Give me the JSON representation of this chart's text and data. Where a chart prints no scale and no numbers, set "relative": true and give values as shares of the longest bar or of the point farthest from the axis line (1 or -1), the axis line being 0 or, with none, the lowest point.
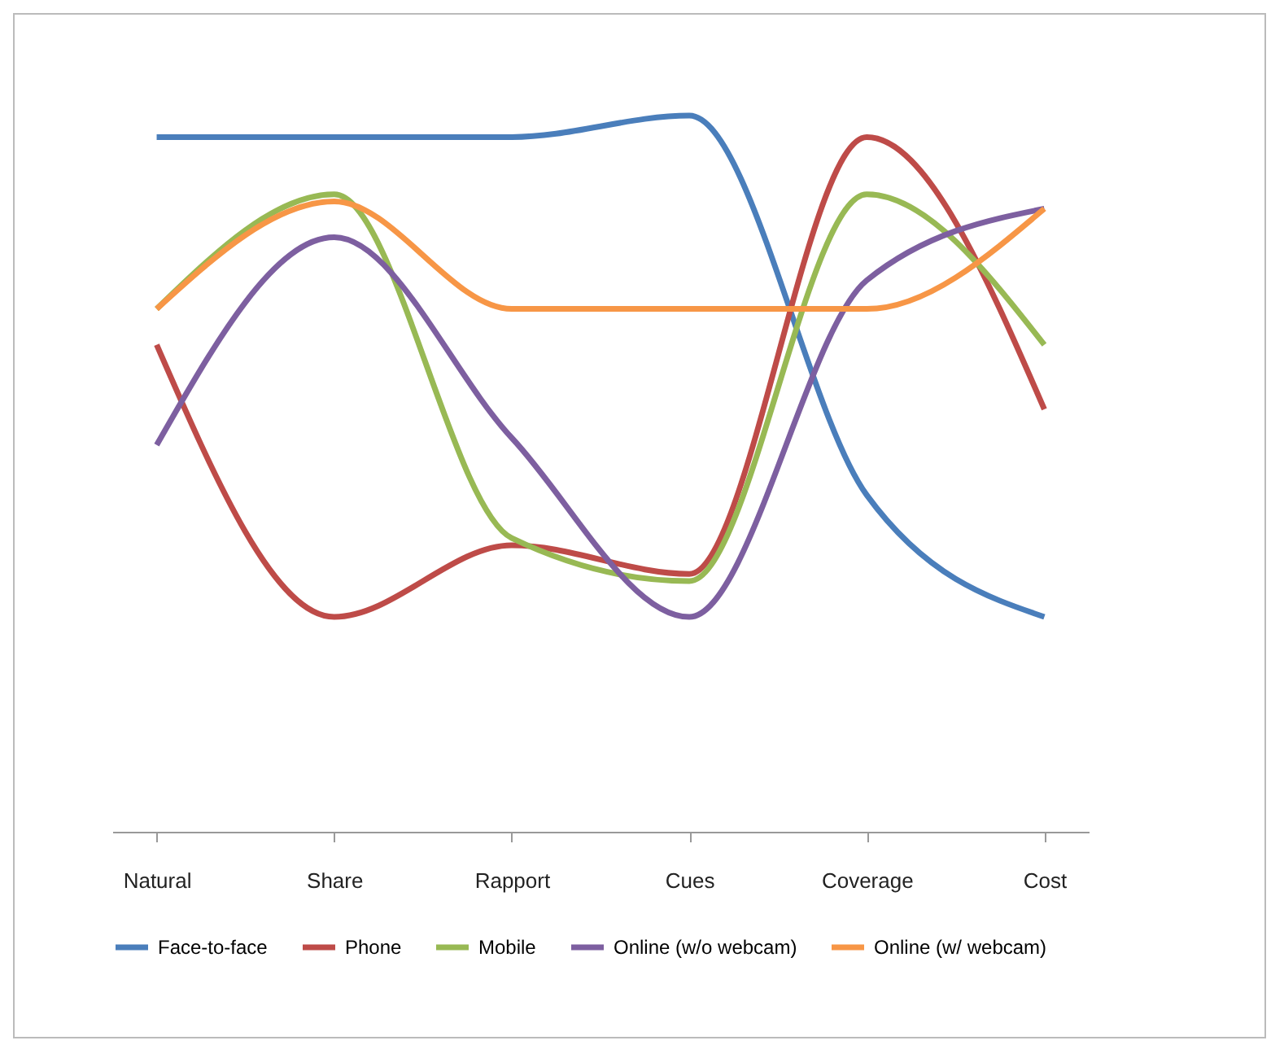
{
  "chart_data": {
    "type": "line",
    "relative": true,
    "categories": [
      "Natural",
      "Share",
      "Rapport",
      "Cues",
      "Coverage",
      "Cost"
    ],
    "series": [
      {
        "name": "Face-to-face",
        "color": "#4a7ebb",
        "values": [
          0.97,
          0.97,
          0.97,
          1,
          0.47,
          0.3
        ]
      },
      {
        "name": "Phone",
        "color": "#be4b48",
        "values": [
          0.68,
          0.3,
          0.4,
          0.36,
          0.97,
          0.59
        ]
      },
      {
        "name": "Mobile",
        "color": "#98b954",
        "values": [
          0.73,
          0.89,
          0.41,
          0.35,
          0.89,
          0.68
        ]
      },
      {
        "name": "Online (w/o webcam)",
        "color": "#7d5fa0",
        "values": [
          0.54,
          0.83,
          0.55,
          0.3,
          0.77,
          0.87
        ]
      },
      {
        "name": "Online (w/ webcam)",
        "color": "#f79646",
        "values": [
          0.73,
          0.88,
          0.73,
          0.73,
          0.73,
          0.87
        ]
      }
    ],
    "legend": "bottom",
    "grid": false,
    "marker": "none"
  }
}
